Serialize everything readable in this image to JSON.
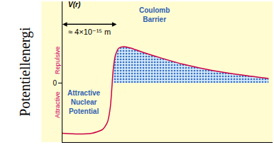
{
  "chart_data": {
    "type": "line",
    "y_label": "Potentiellenergi",
    "x": [
      0,
      1.14,
      2.18,
      2.96,
      3.32,
      3.53,
      3.64,
      3.74,
      3.9,
      4.16,
      4.52,
      5.04,
      5.82,
      7.38,
      8.94,
      11.0,
      13.1,
      15.2
    ],
    "values": [
      -6.8,
      -6.9,
      -6.8,
      -6.3,
      -5.3,
      -3.3,
      -0.8,
      1.7,
      3.7,
      4.7,
      4.9,
      4.7,
      4.2,
      3.3,
      2.5,
      1.7,
      1.1,
      0.6
    ],
    "color": "#cc0044",
    "xlim": [
      0,
      15.5
    ],
    "ylim": [
      -8,
      11
    ],
    "yticks": [
      0
    ],
    "tick_labels": "y",
    "grid": false,
    "side_labels": {
      "above": "Repulsive",
      "below": "Attractive"
    },
    "dimension": {
      "label": "≈ 4×10⁻¹⁵ m",
      "from": 0,
      "to": 4,
      "y": 7.9
    },
    "annotations": [
      {
        "text": "V(r)",
        "x": 0.9,
        "y": 10.6
      },
      {
        "text": "Coulomb Barrier",
        "x": 6.8,
        "y": 9.2
      },
      {
        "text": "Attractive Nuclear Potential",
        "x": 1.6,
        "y": -2.6
      }
    ]
  }
}
